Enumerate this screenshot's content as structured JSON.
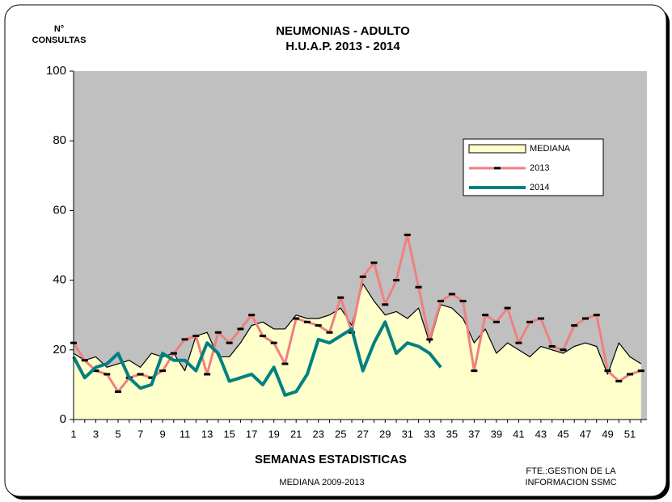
{
  "chart_data": {
    "type": "line",
    "title": [
      "NEUMONIAS  - ADULTO",
      "H.U.A.P.   2013 - 2014"
    ],
    "y_label": [
      "N°",
      "CONSULTAS"
    ],
    "x_label": "SEMANAS ESTADISTICAS",
    "subtitle": "MEDIANA 2009-2013",
    "source": [
      "FTE.:GESTION DE LA",
      "INFORMACION SSMC"
    ],
    "categories": [
      "1",
      null,
      "3",
      null,
      "5",
      null,
      "7",
      null,
      "9",
      null,
      "11",
      null,
      "13",
      null,
      "15",
      null,
      "17",
      null,
      "19",
      null,
      "21",
      null,
      "23",
      null,
      "25",
      null,
      "27",
      null,
      "29",
      null,
      "31",
      null,
      "33",
      null,
      "35",
      null,
      "37",
      null,
      "39",
      null,
      "41",
      null,
      "43",
      null,
      "45",
      null,
      "47",
      null,
      "49",
      null,
      "51",
      null
    ],
    "ylim": [
      0,
      100
    ],
    "yticks": [
      0,
      20,
      40,
      60,
      80,
      100
    ],
    "grid": false,
    "plot_background": "#c0c0c0",
    "series": [
      {
        "name": "MEDIANA",
        "color": "#000000",
        "fill": "#ffffcc",
        "values": [
          19,
          17,
          18,
          15,
          16,
          17,
          15,
          19,
          18,
          19,
          14,
          24,
          25,
          18,
          18,
          22,
          27,
          28,
          26,
          26,
          30,
          29,
          29,
          30,
          32,
          27,
          39,
          34,
          30,
          31,
          29,
          32,
          22,
          33,
          32,
          29,
          22,
          26,
          19,
          22,
          20,
          18,
          21,
          20,
          19,
          21,
          22,
          21,
          13,
          22,
          18,
          16
        ]
      },
      {
        "name": "2013",
        "color": "#f08080",
        "markers": true,
        "values": [
          22,
          17,
          14,
          13,
          8,
          12,
          13,
          12,
          14,
          19,
          23,
          24,
          13,
          25,
          22,
          26,
          30,
          24,
          22,
          16,
          29,
          28,
          27,
          25,
          35,
          25,
          41,
          45,
          33,
          40,
          53,
          38,
          23,
          34,
          36,
          34,
          14,
          30,
          28,
          32,
          22,
          28,
          29,
          21,
          20,
          27,
          29,
          30,
          14,
          11,
          13,
          14
        ]
      },
      {
        "name": "2014",
        "color": "#008080",
        "values": [
          18,
          12,
          15,
          16,
          19,
          12,
          9,
          10,
          19,
          17,
          17,
          14,
          22,
          19,
          11,
          12,
          13,
          10,
          15,
          7,
          8,
          13,
          23,
          22,
          24,
          26,
          14,
          22,
          28,
          19,
          22,
          21,
          19,
          15,
          null,
          null,
          null,
          null,
          null,
          null,
          null,
          null,
          null,
          null,
          null,
          null,
          null,
          null,
          null,
          null,
          null,
          null
        ]
      }
    ]
  }
}
